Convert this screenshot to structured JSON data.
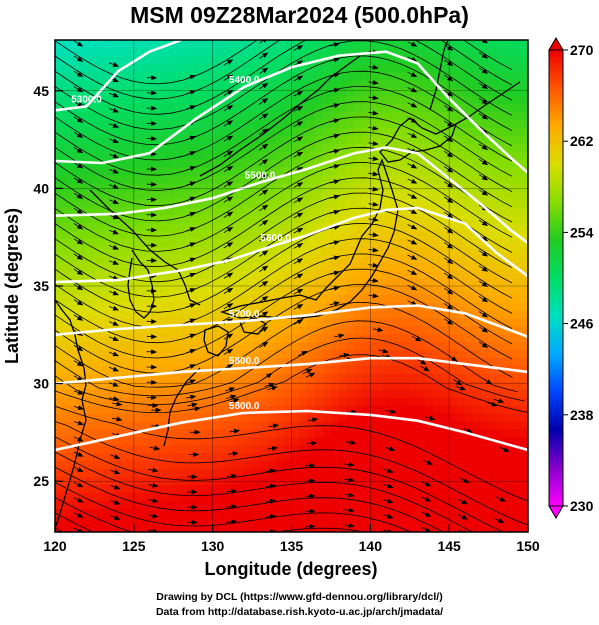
{
  "title": "MSM 09Z28Mar2024 (500.0hPa)",
  "xaxis": {
    "label": "Longitude (degrees)",
    "range": [
      120,
      150
    ],
    "ticks": [
      "120",
      "125",
      "130",
      "135",
      "140",
      "145",
      "150"
    ]
  },
  "yaxis": {
    "label": "Latitude  (degrees)",
    "range": [
      22.4,
      47.6
    ],
    "ticks": [
      "25",
      "30",
      "35",
      "40",
      "45"
    ]
  },
  "colorbar": {
    "min": 230,
    "max": 270,
    "ticks": [
      "270",
      "262",
      "254",
      "246",
      "238",
      "230"
    ],
    "palette": [
      "#ff00ff",
      "#8800cc",
      "#0000aa",
      "#0044ff",
      "#00aaff",
      "#00e0c0",
      "#00dd66",
      "#22cc22",
      "#88dd00",
      "#dddd00",
      "#ffaa00",
      "#ff5500",
      "#ee0000"
    ]
  },
  "contours": [
    {
      "label": "5300.0",
      "points": [
        [
          120,
          44.0
        ],
        [
          122,
          44.2
        ],
        [
          124,
          46.0
        ],
        [
          126,
          47.0
        ],
        [
          128,
          47.6
        ]
      ]
    },
    {
      "label": "5400.0",
      "points": [
        [
          120,
          41.4
        ],
        [
          123,
          41.3
        ],
        [
          126,
          41.8
        ],
        [
          129,
          43.6
        ],
        [
          132,
          45.2
        ],
        [
          135,
          46.2
        ],
        [
          138,
          46.8
        ],
        [
          141,
          47.0
        ],
        [
          143,
          46.4
        ],
        [
          145,
          44.6
        ],
        [
          147,
          43.0
        ],
        [
          149,
          41.5
        ],
        [
          150,
          40.8
        ]
      ]
    },
    {
      "label": "5500.0",
      "points": [
        [
          120,
          38.6
        ],
        [
          124,
          38.7
        ],
        [
          127,
          39.0
        ],
        [
          130,
          39.5
        ],
        [
          133,
          40.3
        ],
        [
          136,
          41.0
        ],
        [
          139,
          41.8
        ],
        [
          141,
          42.1
        ],
        [
          143,
          41.8
        ],
        [
          145,
          40.5
        ],
        [
          147,
          39.2
        ],
        [
          149,
          37.8
        ],
        [
          150,
          37.2
        ]
      ]
    },
    {
      "label": "5600.0",
      "points": [
        [
          120,
          35.2
        ],
        [
          124,
          35.3
        ],
        [
          128,
          35.8
        ],
        [
          131,
          36.3
        ],
        [
          134,
          37.1
        ],
        [
          136,
          37.6
        ],
        [
          139,
          38.5
        ],
        [
          141,
          38.9
        ],
        [
          143,
          39.0
        ],
        [
          146,
          38.2
        ],
        [
          148,
          36.7
        ],
        [
          150,
          35.5
        ]
      ]
    },
    {
      "label": "5700.0",
      "points": [
        [
          120,
          32.5
        ],
        [
          124,
          32.8
        ],
        [
          128,
          33.0
        ],
        [
          132,
          33.2
        ],
        [
          136,
          33.5
        ],
        [
          140,
          33.9
        ],
        [
          143,
          34.0
        ],
        [
          146,
          33.6
        ],
        [
          148,
          33.0
        ],
        [
          150,
          32.4
        ]
      ]
    },
    {
      "label": "5800.0",
      "points": [
        [
          120,
          30.0
        ],
        [
          124,
          30.3
        ],
        [
          128,
          30.6
        ],
        [
          132,
          30.8
        ],
        [
          136,
          31.0
        ],
        [
          140,
          31.3
        ],
        [
          143,
          31.3
        ],
        [
          146,
          31.0
        ],
        [
          150,
          30.6
        ]
      ]
    },
    {
      "label": "5800.0",
      "points": [
        [
          120,
          26.6
        ],
        [
          124,
          27.3
        ],
        [
          128,
          28.0
        ],
        [
          132,
          28.5
        ],
        [
          136,
          28.6
        ],
        [
          140,
          28.4
        ],
        [
          143,
          28.1
        ],
        [
          146,
          27.5
        ],
        [
          150,
          26.6
        ]
      ]
    }
  ],
  "credits": {
    "line1": "Drawing by DCL (https://www.gfd-dennou.org/library/dcl/)",
    "line2": "Data from http://database.rish.kyoto-u.ac.jp/arch/jmadata/"
  }
}
